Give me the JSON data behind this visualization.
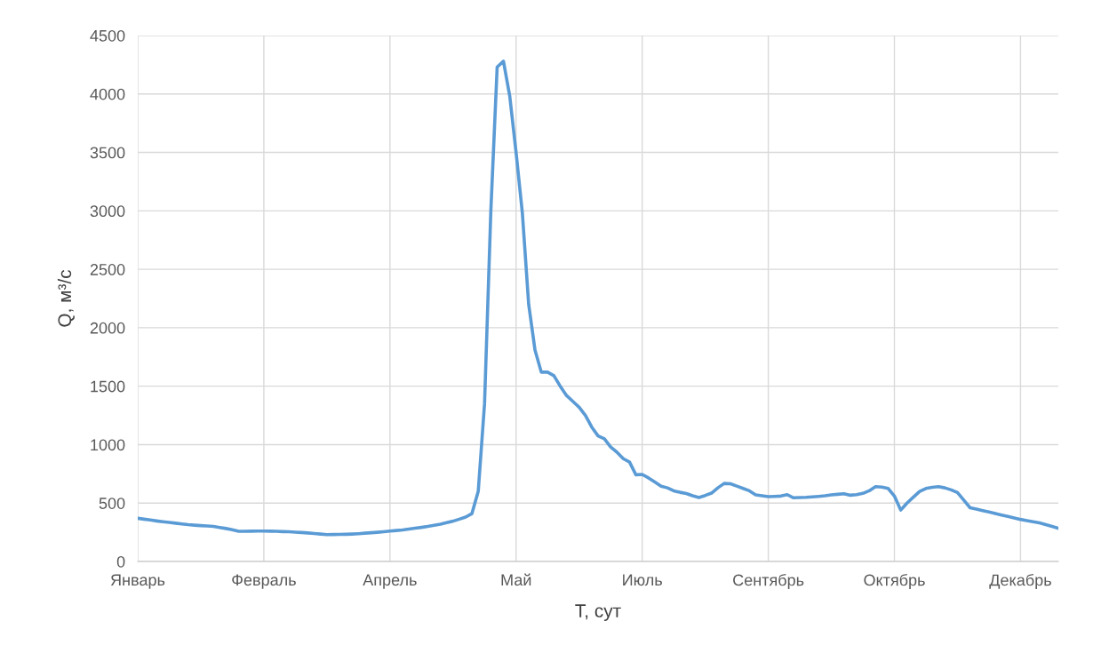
{
  "chart_data": {
    "type": "line",
    "xlabel": "T, сут",
    "ylabel": "Q, м³/с",
    "categories": [
      "Январь",
      null,
      null,
      null,
      null,
      null,
      null,
      null,
      null,
      null,
      null,
      null,
      null,
      null,
      null,
      null,
      null,
      null,
      null,
      null,
      "Февраль",
      null,
      null,
      null,
      null,
      null,
      null,
      null,
      null,
      null,
      null,
      null,
      null,
      null,
      null,
      null,
      null,
      null,
      null,
      null,
      "Апрель",
      null,
      null,
      null,
      null,
      null,
      null,
      null,
      null,
      null,
      null,
      null,
      null,
      null,
      null,
      null,
      null,
      null,
      null,
      null,
      "Май",
      null,
      null,
      null,
      null,
      null,
      null,
      null,
      null,
      null,
      null,
      null,
      null,
      null,
      null,
      null,
      null,
      null,
      null,
      null,
      "Июль",
      null,
      null,
      null,
      null,
      null,
      null,
      null,
      null,
      null,
      null,
      null,
      null,
      null,
      null,
      null,
      null,
      null,
      null,
      null,
      "Сентябрь",
      null,
      null,
      null,
      null,
      null,
      null,
      null,
      null,
      null,
      null,
      null,
      null,
      null,
      null,
      null,
      null,
      null,
      null,
      null,
      "Октябрь",
      null,
      null,
      null,
      null,
      null,
      null,
      null,
      null,
      null,
      null,
      null,
      null,
      null,
      null,
      null,
      null,
      null,
      null,
      null,
      "Декабрь",
      null,
      null,
      null,
      null,
      null,
      null
    ],
    "ylim": [
      0,
      4500
    ],
    "yticks": [
      0,
      500,
      1000,
      1500,
      2000,
      2500,
      3000,
      3500,
      4000,
      4500
    ],
    "grid": true,
    "series": [
      {
        "color": "#5b9bd5",
        "values": [
          370,
          362,
          355,
          347,
          340,
          334,
          328,
          321,
          315,
          311,
          307,
          304,
          300,
          291,
          282,
          272,
          258,
          258,
          259,
          260,
          260,
          259,
          258,
          256,
          255,
          251,
          248,
          244,
          240,
          235,
          230,
          231,
          232,
          233,
          235,
          238,
          242,
          246,
          250,
          255,
          260,
          265,
          270,
          277,
          285,
          292,
          300,
          310,
          320,
          332,
          345,
          362,
          380,
          410,
          600,
          1350,
          3000,
          4230,
          4280,
          3980,
          3500,
          2980,
          2200,
          1810,
          1620,
          1620,
          1590,
          1500,
          1420,
          1370,
          1320,
          1250,
          1150,
          1075,
          1050,
          980,
          935,
          880,
          850,
          742,
          745,
          715,
          680,
          645,
          630,
          605,
          592,
          582,
          562,
          548,
          565,
          585,
          630,
          668,
          665,
          645,
          625,
          605,
          570,
          562,
          555,
          557,
          560,
          572,
          545,
          547,
          549,
          553,
          557,
          562,
          570,
          575,
          580,
          567,
          572,
          583,
          605,
          640,
          637,
          625,
          560,
          440,
          500,
          550,
          600,
          625,
          635,
          640,
          630,
          613,
          590,
          525,
          460,
          448,
          435,
          423,
          410,
          398,
          385,
          373,
          360,
          350,
          340,
          330,
          315,
          300,
          285
        ]
      }
    ]
  }
}
